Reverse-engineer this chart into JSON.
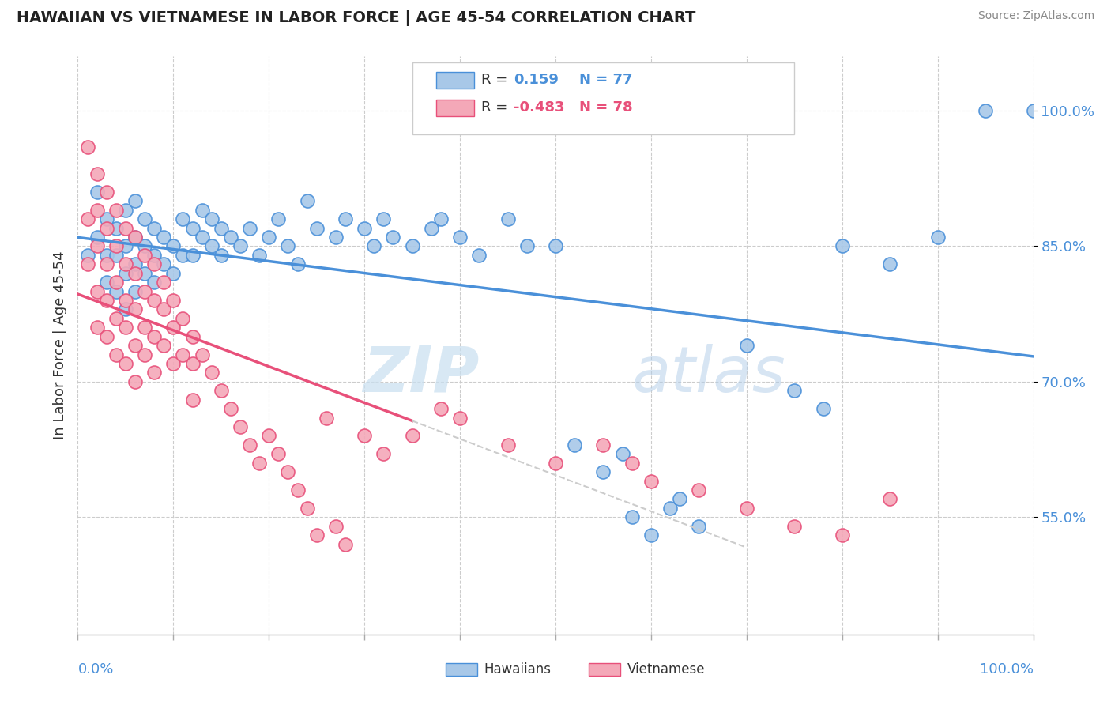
{
  "title": "HAWAIIAN VS VIETNAMESE IN LABOR FORCE | AGE 45-54 CORRELATION CHART",
  "source": "Source: ZipAtlas.com",
  "ylabel": "In Labor Force | Age 45-54",
  "yticks": [
    "55.0%",
    "70.0%",
    "85.0%",
    "100.0%"
  ],
  "ytick_vals": [
    0.55,
    0.7,
    0.85,
    1.0
  ],
  "xrange": [
    0.0,
    1.0
  ],
  "yrange": [
    0.42,
    1.06
  ],
  "hawaiian_color": "#a8c8e8",
  "vietnamese_color": "#f4a8b8",
  "hawaiian_line_color": "#4a90d9",
  "vietnamese_line_color": "#e8507a",
  "r_hawaiian": 0.159,
  "n_hawaiian": 77,
  "r_vietnamese": -0.483,
  "n_vietnamese": 78,
  "watermark_zip": "ZIP",
  "watermark_atlas": "atlas",
  "hawaiian_scatter": [
    [
      0.01,
      0.84
    ],
    [
      0.02,
      0.91
    ],
    [
      0.02,
      0.86
    ],
    [
      0.03,
      0.88
    ],
    [
      0.03,
      0.84
    ],
    [
      0.03,
      0.81
    ],
    [
      0.04,
      0.87
    ],
    [
      0.04,
      0.84
    ],
    [
      0.04,
      0.8
    ],
    [
      0.05,
      0.89
    ],
    [
      0.05,
      0.85
    ],
    [
      0.05,
      0.82
    ],
    [
      0.05,
      0.78
    ],
    [
      0.06,
      0.9
    ],
    [
      0.06,
      0.86
    ],
    [
      0.06,
      0.83
    ],
    [
      0.06,
      0.8
    ],
    [
      0.07,
      0.88
    ],
    [
      0.07,
      0.85
    ],
    [
      0.07,
      0.82
    ],
    [
      0.08,
      0.87
    ],
    [
      0.08,
      0.84
    ],
    [
      0.08,
      0.81
    ],
    [
      0.09,
      0.86
    ],
    [
      0.09,
      0.83
    ],
    [
      0.1,
      0.85
    ],
    [
      0.1,
      0.82
    ],
    [
      0.11,
      0.88
    ],
    [
      0.11,
      0.84
    ],
    [
      0.12,
      0.87
    ],
    [
      0.12,
      0.84
    ],
    [
      0.13,
      0.89
    ],
    [
      0.13,
      0.86
    ],
    [
      0.14,
      0.88
    ],
    [
      0.14,
      0.85
    ],
    [
      0.15,
      0.87
    ],
    [
      0.15,
      0.84
    ],
    [
      0.16,
      0.86
    ],
    [
      0.17,
      0.85
    ],
    [
      0.18,
      0.87
    ],
    [
      0.19,
      0.84
    ],
    [
      0.2,
      0.86
    ],
    [
      0.21,
      0.88
    ],
    [
      0.22,
      0.85
    ],
    [
      0.23,
      0.83
    ],
    [
      0.24,
      0.9
    ],
    [
      0.25,
      0.87
    ],
    [
      0.27,
      0.86
    ],
    [
      0.28,
      0.88
    ],
    [
      0.3,
      0.87
    ],
    [
      0.31,
      0.85
    ],
    [
      0.32,
      0.88
    ],
    [
      0.33,
      0.86
    ],
    [
      0.35,
      0.85
    ],
    [
      0.37,
      0.87
    ],
    [
      0.38,
      0.88
    ],
    [
      0.4,
      0.86
    ],
    [
      0.42,
      0.84
    ],
    [
      0.45,
      0.88
    ],
    [
      0.47,
      0.85
    ],
    [
      0.5,
      0.85
    ],
    [
      0.52,
      0.63
    ],
    [
      0.55,
      0.6
    ],
    [
      0.57,
      0.62
    ],
    [
      0.58,
      0.55
    ],
    [
      0.6,
      0.53
    ],
    [
      0.62,
      0.56
    ],
    [
      0.63,
      0.57
    ],
    [
      0.65,
      0.54
    ],
    [
      0.7,
      0.74
    ],
    [
      0.75,
      0.69
    ],
    [
      0.78,
      0.67
    ],
    [
      0.8,
      0.85
    ],
    [
      0.85,
      0.83
    ],
    [
      0.9,
      0.86
    ],
    [
      0.95,
      1.0
    ],
    [
      1.0,
      1.0
    ]
  ],
  "vietnamese_scatter": [
    [
      0.01,
      0.96
    ],
    [
      0.01,
      0.88
    ],
    [
      0.01,
      0.83
    ],
    [
      0.02,
      0.93
    ],
    [
      0.02,
      0.89
    ],
    [
      0.02,
      0.85
    ],
    [
      0.02,
      0.8
    ],
    [
      0.02,
      0.76
    ],
    [
      0.03,
      0.91
    ],
    [
      0.03,
      0.87
    ],
    [
      0.03,
      0.83
    ],
    [
      0.03,
      0.79
    ],
    [
      0.03,
      0.75
    ],
    [
      0.04,
      0.89
    ],
    [
      0.04,
      0.85
    ],
    [
      0.04,
      0.81
    ],
    [
      0.04,
      0.77
    ],
    [
      0.04,
      0.73
    ],
    [
      0.05,
      0.87
    ],
    [
      0.05,
      0.83
    ],
    [
      0.05,
      0.79
    ],
    [
      0.05,
      0.76
    ],
    [
      0.05,
      0.72
    ],
    [
      0.06,
      0.86
    ],
    [
      0.06,
      0.82
    ],
    [
      0.06,
      0.78
    ],
    [
      0.06,
      0.74
    ],
    [
      0.06,
      0.7
    ],
    [
      0.07,
      0.84
    ],
    [
      0.07,
      0.8
    ],
    [
      0.07,
      0.76
    ],
    [
      0.07,
      0.73
    ],
    [
      0.08,
      0.83
    ],
    [
      0.08,
      0.79
    ],
    [
      0.08,
      0.75
    ],
    [
      0.08,
      0.71
    ],
    [
      0.09,
      0.81
    ],
    [
      0.09,
      0.78
    ],
    [
      0.09,
      0.74
    ],
    [
      0.1,
      0.79
    ],
    [
      0.1,
      0.76
    ],
    [
      0.1,
      0.72
    ],
    [
      0.11,
      0.77
    ],
    [
      0.11,
      0.73
    ],
    [
      0.12,
      0.75
    ],
    [
      0.12,
      0.72
    ],
    [
      0.12,
      0.68
    ],
    [
      0.13,
      0.73
    ],
    [
      0.14,
      0.71
    ],
    [
      0.15,
      0.69
    ],
    [
      0.16,
      0.67
    ],
    [
      0.17,
      0.65
    ],
    [
      0.18,
      0.63
    ],
    [
      0.19,
      0.61
    ],
    [
      0.2,
      0.64
    ],
    [
      0.21,
      0.62
    ],
    [
      0.22,
      0.6
    ],
    [
      0.23,
      0.58
    ],
    [
      0.24,
      0.56
    ],
    [
      0.25,
      0.53
    ],
    [
      0.26,
      0.66
    ],
    [
      0.27,
      0.54
    ],
    [
      0.28,
      0.52
    ],
    [
      0.3,
      0.64
    ],
    [
      0.32,
      0.62
    ],
    [
      0.35,
      0.64
    ],
    [
      0.38,
      0.67
    ],
    [
      0.4,
      0.66
    ],
    [
      0.45,
      0.63
    ],
    [
      0.5,
      0.61
    ],
    [
      0.55,
      0.63
    ],
    [
      0.58,
      0.61
    ],
    [
      0.6,
      0.59
    ],
    [
      0.65,
      0.58
    ],
    [
      0.7,
      0.56
    ],
    [
      0.75,
      0.54
    ],
    [
      0.8,
      0.53
    ],
    [
      0.85,
      0.57
    ]
  ]
}
